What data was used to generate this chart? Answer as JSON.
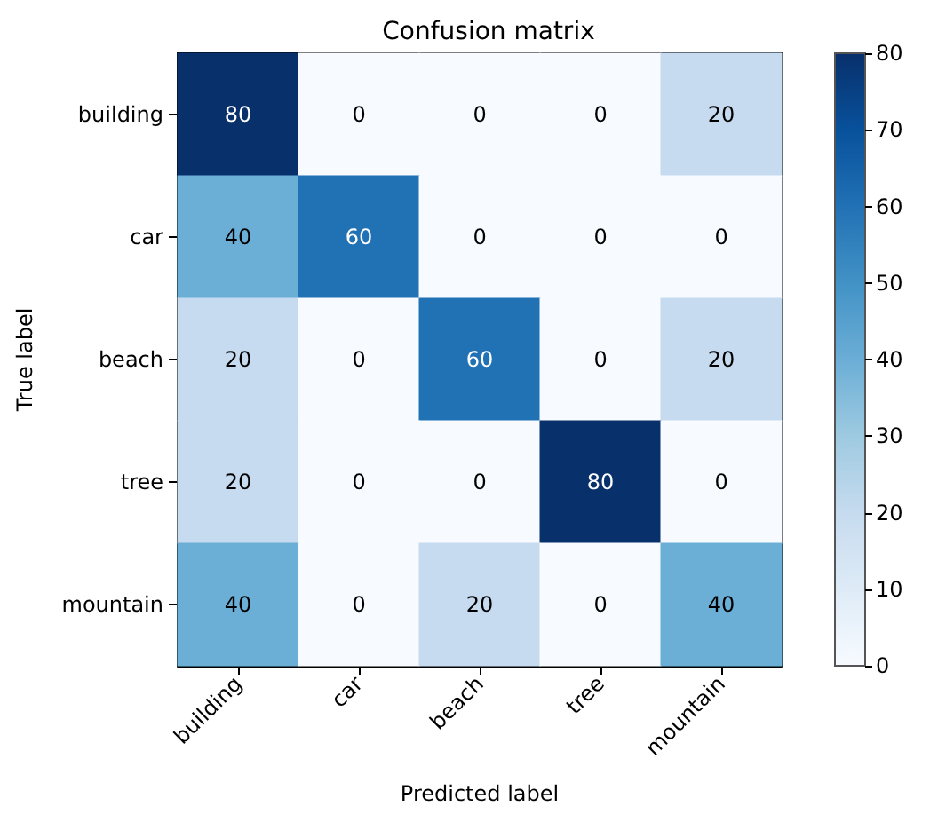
{
  "chart_data": {
    "type": "heatmap",
    "title": "Confusion matrix",
    "xlabel": "Predicted label",
    "ylabel": "True label",
    "categories": [
      "building",
      "car",
      "beach",
      "tree",
      "mountain"
    ],
    "y_categories": [
      "building",
      "car",
      "beach",
      "tree",
      "mountain"
    ],
    "cells": [
      [
        80,
        0,
        0,
        0,
        20
      ],
      [
        40,
        60,
        0,
        0,
        0
      ],
      [
        20,
        0,
        60,
        0,
        20
      ],
      [
        20,
        0,
        0,
        80,
        0
      ],
      [
        40,
        0,
        20,
        0,
        40
      ]
    ],
    "clim": [
      0,
      80
    ],
    "cticks": [
      0,
      10,
      20,
      30,
      40,
      50,
      60,
      70,
      80
    ],
    "data_labels": true
  }
}
